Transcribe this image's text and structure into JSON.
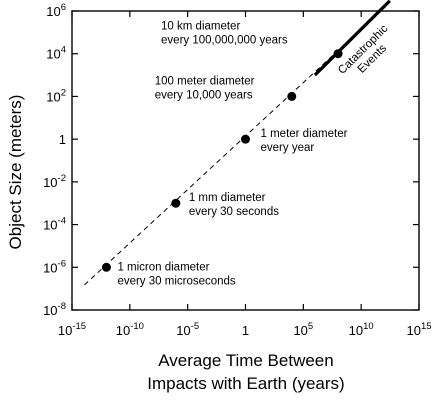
{
  "chart_data": {
    "type": "scatter",
    "xlabel_lines": [
      "Average Time Between",
      "Impacts with Earth (years)"
    ],
    "ylabel": "Object Size (meters)",
    "x_scale": "log10",
    "y_scale": "log10",
    "xlim": [
      1e-15,
      1000000000000000.0
    ],
    "ylim": [
      1e-08,
      1000000.0
    ],
    "x_ticks": [
      {
        "value": 1e-15,
        "base": "10",
        "exp": "-15"
      },
      {
        "value": 1e-10,
        "base": "10",
        "exp": "-10"
      },
      {
        "value": 1e-05,
        "base": "10",
        "exp": "-5"
      },
      {
        "value": 1,
        "base": "1",
        "exp": ""
      },
      {
        "value": 100000.0,
        "base": "10",
        "exp": "5"
      },
      {
        "value": 10000000000.0,
        "base": "10",
        "exp": "10"
      },
      {
        "value": 1000000000000000.0,
        "base": "10",
        "exp": "15"
      }
    ],
    "y_ticks": [
      {
        "value": 1e-08,
        "base": "10",
        "exp": "-8"
      },
      {
        "value": 1e-06,
        "base": "10",
        "exp": "-6"
      },
      {
        "value": 0.0001,
        "base": "10",
        "exp": "-4"
      },
      {
        "value": 0.01,
        "base": "10",
        "exp": "-2"
      },
      {
        "value": 1,
        "base": "1",
        "exp": ""
      },
      {
        "value": 100.0,
        "base": "10",
        "exp": "2"
      },
      {
        "value": 10000.0,
        "base": "10",
        "exp": "4"
      },
      {
        "value": 1000000.0,
        "base": "10",
        "exp": "6"
      }
    ],
    "points": [
      {
        "x": 9.5e-13,
        "y": 1e-06,
        "lines": [
          "1 micron diameter",
          "every 30 microseconds"
        ]
      },
      {
        "x": 9.5e-07,
        "y": 0.001,
        "lines": [
          "1 mm diameter",
          "every 30 seconds"
        ]
      },
      {
        "x": 1,
        "y": 1,
        "lines": [
          "1 meter diameter",
          "every year"
        ]
      },
      {
        "x": 10000.0,
        "y": 100,
        "lines": [
          "100 meter diameter",
          "every 10,000 years"
        ]
      },
      {
        "x": 100000000.0,
        "y": 10000.0,
        "lines": [
          "10 km diameter",
          "every 100,000,000 years"
        ]
      }
    ],
    "trend_line": {
      "style": "dashed",
      "x": [
        1.2e-14,
        2000000000000.0
      ],
      "y": [
        1.5e-07,
        2000000.0
      ]
    },
    "catastrophic_segment": {
      "x": [
        1000000.0,
        3000000000000.0
      ],
      "y": [
        1000.0,
        3000000.0
      ],
      "label_lines": [
        "Catastrophic",
        "Events"
      ]
    }
  }
}
